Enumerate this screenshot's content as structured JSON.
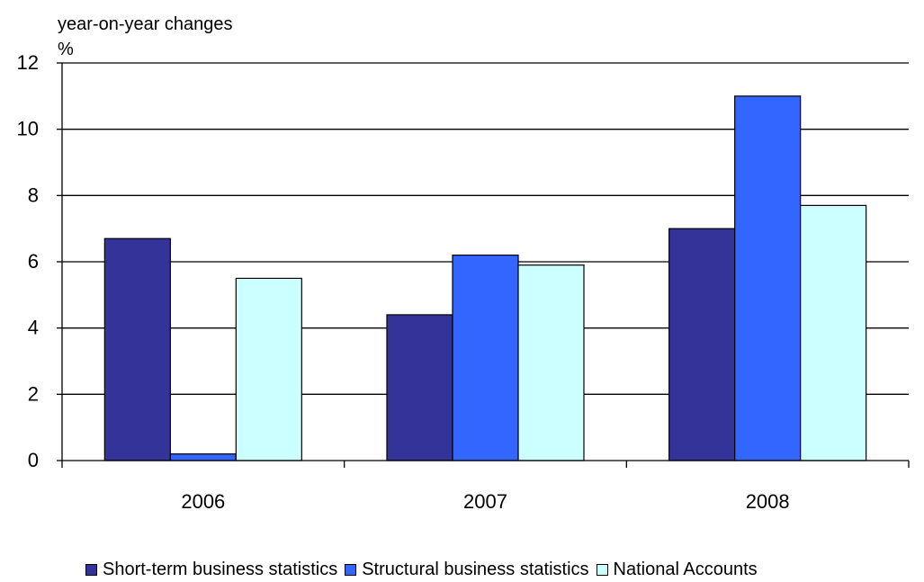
{
  "chart_data": {
    "type": "bar",
    "title": "",
    "unit_line1": "year-on-year changes",
    "unit_line2": "%",
    "categories": [
      "2006",
      "2007",
      "2008"
    ],
    "series": [
      {
        "name": "Short-term business statistics",
        "color": "#333399",
        "values": [
          6.7,
          4.4,
          7.0
        ]
      },
      {
        "name": "Structural business statistics",
        "color": "#3366FF",
        "values": [
          0.2,
          6.2,
          11.0
        ]
      },
      {
        "name": "National Accounts",
        "color": "#CCFFFF",
        "values": [
          5.5,
          5.9,
          7.7
        ]
      }
    ],
    "yticks": [
      "0",
      "2",
      "4",
      "6",
      "8",
      "10",
      "12"
    ],
    "ylim": [
      0,
      12
    ],
    "grid": true,
    "legend_position": "bottom"
  }
}
